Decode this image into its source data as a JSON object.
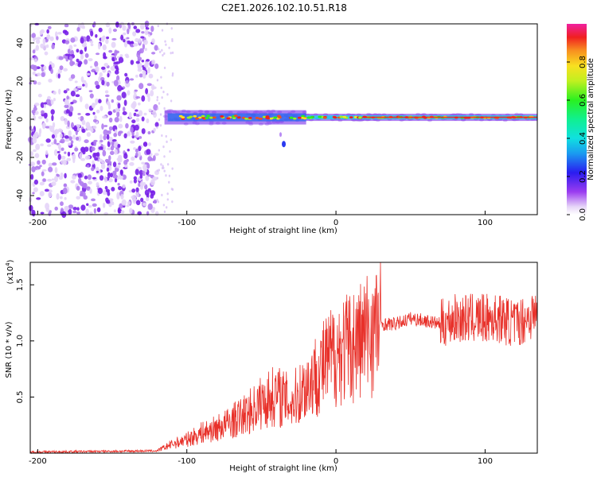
{
  "title": "C2E1.2026.102.10.51.R18",
  "chart_data": [
    {
      "type": "heatmap",
      "xlabel": "Height of straight line (km)",
      "ylabel": "Frequency (Hz)",
      "xlim": [
        -205,
        135
      ],
      "ylim": [
        -50,
        50
      ],
      "xticks": [
        -200,
        -100,
        0,
        100
      ],
      "yticks": [
        40,
        20,
        0,
        -20,
        -40
      ],
      "colorbar": {
        "label": "Normalized spectral amplitude",
        "range": [
          0,
          1
        ],
        "ticks": [
          "0.0",
          "0.2",
          "0.4",
          "0.6",
          "0.8"
        ],
        "tick_values": [
          0.0,
          0.2,
          0.4,
          0.6,
          0.8
        ]
      },
      "features": {
        "noise_region_end_km": -120,
        "line_start_km": -115,
        "line_frequency_hz": 1,
        "dip_km": -35,
        "dip_frequency_hz": -13
      }
    },
    {
      "type": "line",
      "xlabel": "Height of straight line (km)",
      "ylabel": "SNR (10 * v/v)",
      "yscale_label": "(x10",
      "yscale_exp": "4",
      "xlim": [
        -205,
        135
      ],
      "ylim": [
        0,
        1.7
      ],
      "xticks": [
        -200,
        -100,
        0,
        100
      ],
      "yticks": [
        1.5,
        1.0,
        0.5
      ],
      "ytick_labels": [
        "1.5",
        "1.0",
        "0.5"
      ],
      "series": [
        {
          "name": "SNR",
          "color": "#e8312a",
          "envelope": {
            "x": [
              -205,
              -120,
              -110,
              -100,
              -90,
              -80,
              -70,
              -60,
              -50,
              -40,
              -30,
              -20,
              -10,
              0,
              10,
              20,
              30,
              40,
              50,
              60,
              70,
              80,
              90,
              100,
              110,
              120,
              135
            ],
            "y": [
              0.01,
              0.02,
              0.08,
              0.12,
              0.18,
              0.22,
              0.28,
              0.35,
              0.45,
              0.52,
              0.45,
              0.6,
              0.75,
              0.9,
              0.95,
              1.05,
              1.15,
              1.15,
              1.2,
              1.18,
              1.15,
              1.2,
              1.2,
              1.2,
              1.2,
              1.15,
              1.25
            ]
          }
        }
      ]
    }
  ]
}
